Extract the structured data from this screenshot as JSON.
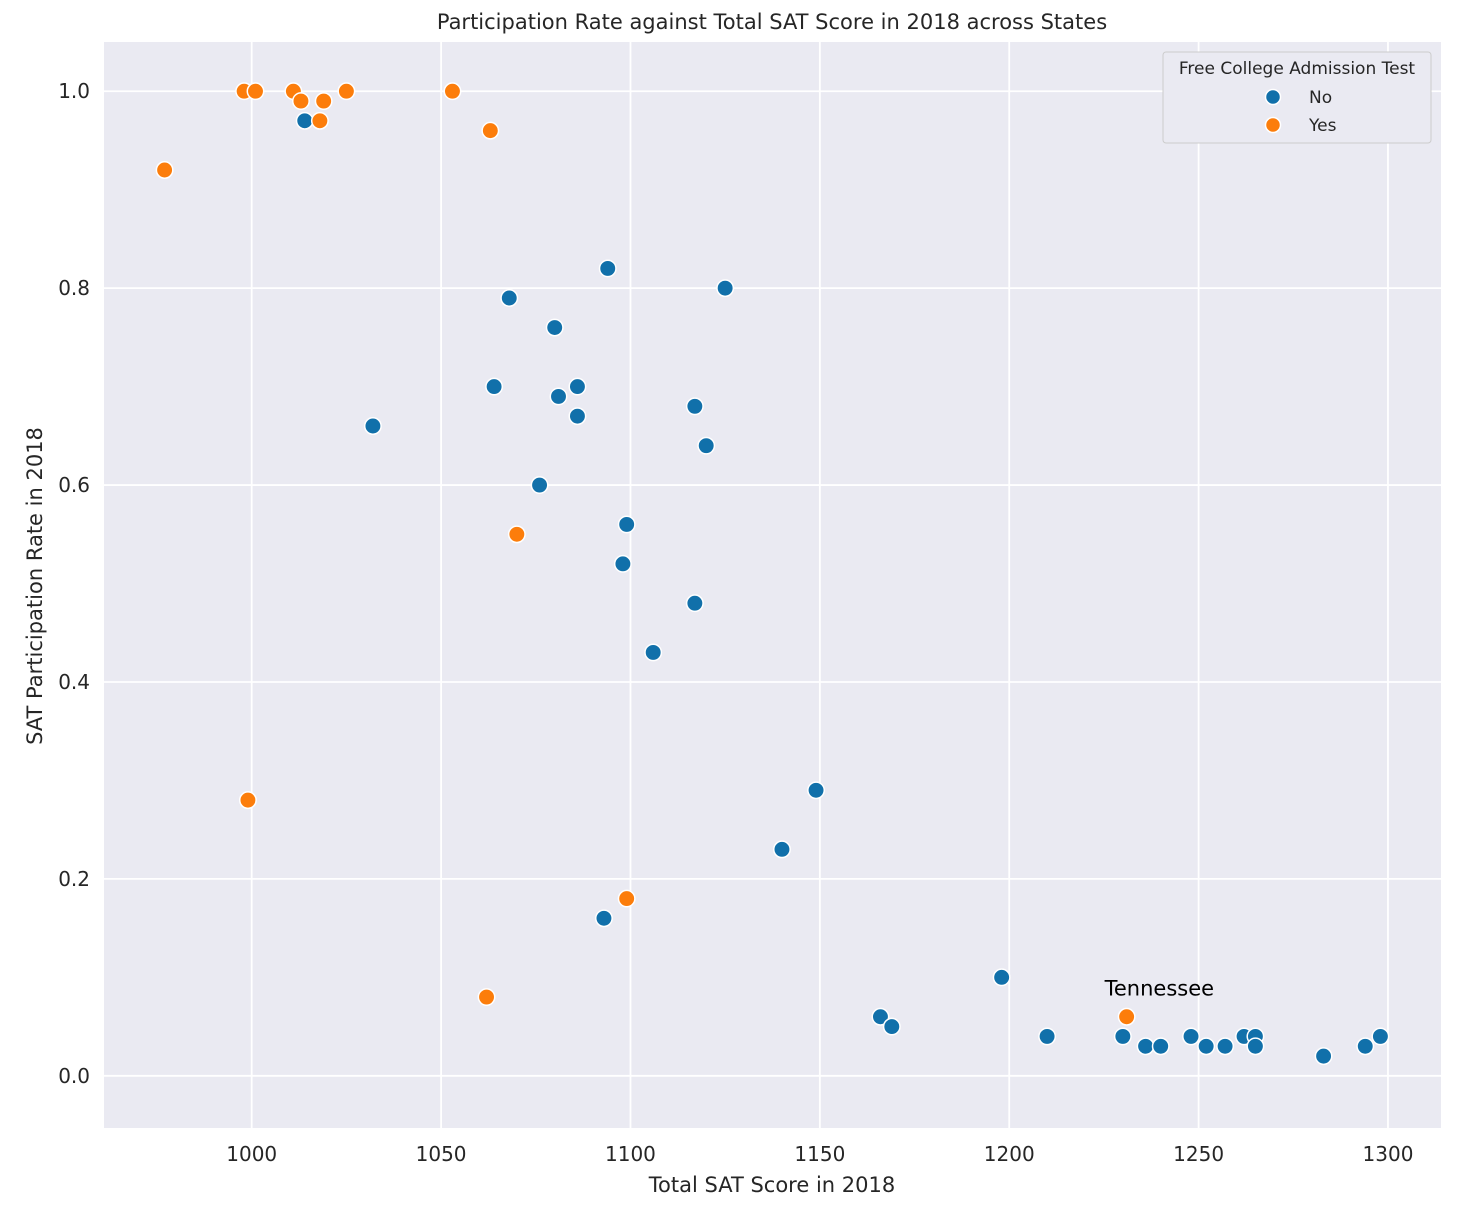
{
  "chart_data": {
    "type": "scatter",
    "title": "Participation Rate against Total SAT Score in 2018 across States",
    "xlabel": "Total SAT Score in 2018",
    "ylabel": "SAT Participation Rate in 2018",
    "xlim": [
      961,
      1314
    ],
    "ylim": [
      -0.053,
      1.05
    ],
    "xticks": [
      1000,
      1050,
      1100,
      1150,
      1200,
      1250,
      1300
    ],
    "yticks": [
      0.0,
      0.2,
      0.4,
      0.6,
      0.8,
      1.0
    ],
    "grid": true,
    "legend": {
      "title": "Free College Admission Test",
      "position": "top-right"
    },
    "series": [
      {
        "name": "No",
        "color": "#1170aa",
        "points": [
          [
            1014,
            0.97
          ],
          [
            1032,
            0.66
          ],
          [
            1064,
            0.7
          ],
          [
            1068,
            0.79
          ],
          [
            1076,
            0.6
          ],
          [
            1080,
            0.76
          ],
          [
            1081,
            0.69
          ],
          [
            1086,
            0.7
          ],
          [
            1086,
            0.67
          ],
          [
            1093,
            0.16
          ],
          [
            1094,
            0.82
          ],
          [
            1098,
            0.52
          ],
          [
            1099,
            0.56
          ],
          [
            1106,
            0.43
          ],
          [
            1117,
            0.68
          ],
          [
            1117,
            0.48
          ],
          [
            1120,
            0.64
          ],
          [
            1125,
            0.8
          ],
          [
            1140,
            0.23
          ],
          [
            1149,
            0.29
          ],
          [
            1166,
            0.06
          ],
          [
            1169,
            0.05
          ],
          [
            1198,
            0.1
          ],
          [
            1210,
            0.04
          ],
          [
            1230,
            0.04
          ],
          [
            1236,
            0.03
          ],
          [
            1240,
            0.03
          ],
          [
            1248,
            0.04
          ],
          [
            1252,
            0.03
          ],
          [
            1257,
            0.03
          ],
          [
            1262,
            0.04
          ],
          [
            1265,
            0.04
          ],
          [
            1265,
            0.03
          ],
          [
            1283,
            0.02
          ],
          [
            1294,
            0.03
          ],
          [
            1298,
            0.04
          ]
        ]
      },
      {
        "name": "Yes",
        "color": "#fc7d0b",
        "points": [
          [
            977,
            0.92
          ],
          [
            998,
            1.0
          ],
          [
            999,
            0.28
          ],
          [
            1001,
            1.0
          ],
          [
            1011,
            1.0
          ],
          [
            1013,
            0.99
          ],
          [
            1018,
            0.97
          ],
          [
            1019,
            0.99
          ],
          [
            1025,
            1.0
          ],
          [
            1053,
            1.0
          ],
          [
            1062,
            0.08
          ],
          [
            1063,
            0.96
          ],
          [
            1070,
            0.55
          ],
          [
            1099,
            0.18
          ],
          [
            1231,
            0.06
          ]
        ]
      }
    ],
    "annotations": [
      {
        "text": "Tennessee",
        "x": 1231,
        "y": 0.06
      }
    ]
  }
}
